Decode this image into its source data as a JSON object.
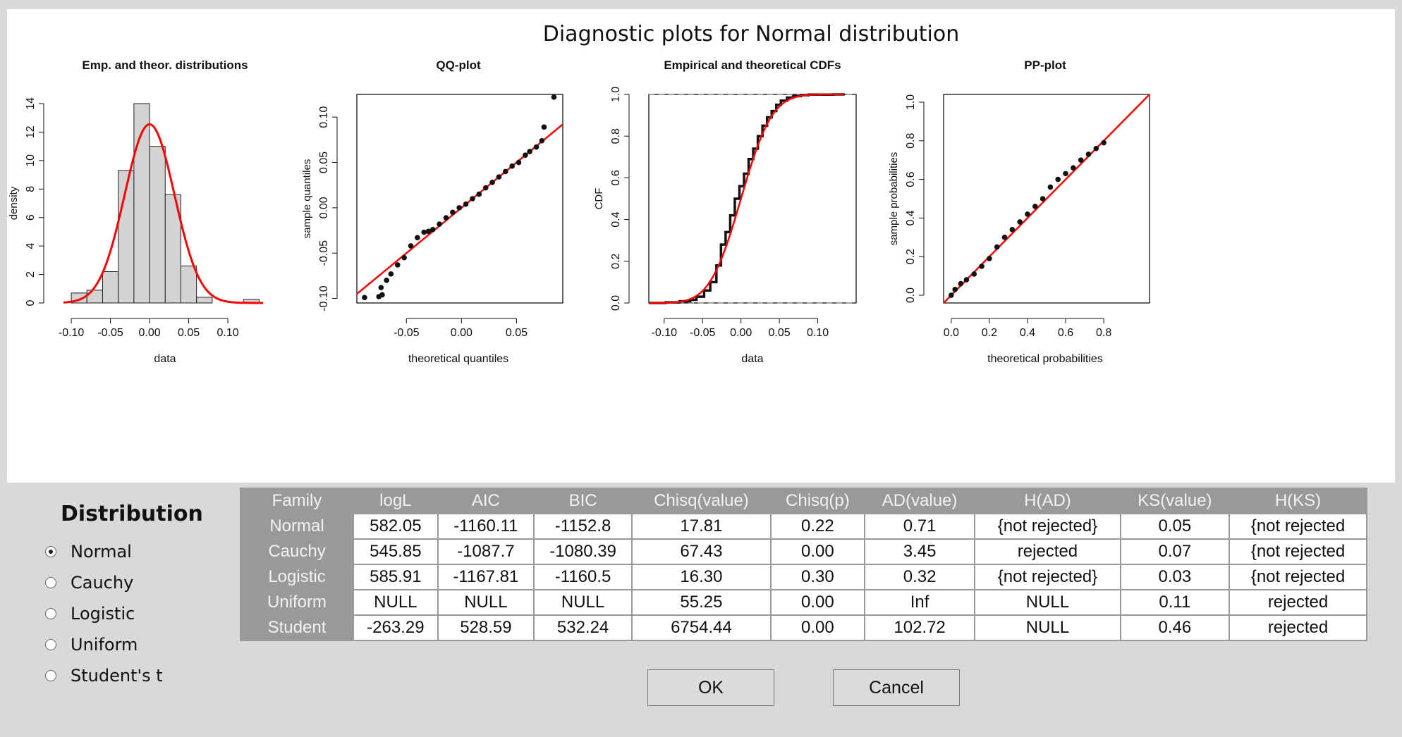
{
  "plot_panel": {
    "main_title": "Diagnostic plots for Normal distribution"
  },
  "chart_data": [
    {
      "type": "bar",
      "title": "Emp. and theor. distributions",
      "xlabel": "data",
      "ylabel": "density",
      "xlim": [
        -0.11,
        0.145
      ],
      "ylim": [
        0,
        14
      ],
      "x_ticks": [
        "-0.10",
        "-0.05",
        "0.00",
        "0.05",
        "0.10"
      ],
      "y_ticks": [
        "0",
        "2",
        "4",
        "6",
        "8",
        "10",
        "12",
        "14"
      ],
      "bin_edges": [
        -0.1,
        -0.08,
        -0.06,
        -0.04,
        -0.02,
        0.0,
        0.02,
        0.04,
        0.06,
        0.08,
        0.1,
        0.12,
        0.14
      ],
      "values": [
        0.7,
        0.9,
        2.2,
        9.3,
        14.0,
        11.0,
        7.6,
        2.6,
        0.4,
        0.0,
        0.0,
        0.25
      ],
      "overlay": {
        "name": "normal density",
        "color": "#ff0000",
        "mean": 0.0,
        "sd": 0.0318
      },
      "grid": false
    },
    {
      "type": "scatter",
      "title": "QQ-plot",
      "xlabel": "theoretical quantiles",
      "ylabel": "sample quantiles",
      "xlim": [
        -0.095,
        0.092
      ],
      "ylim": [
        -0.105,
        0.125
      ],
      "x_ticks": [
        "-0.05",
        "0.00",
        "0.05"
      ],
      "y_ticks": [
        "-0.10",
        "-0.05",
        "0.00",
        "0.05",
        "0.10"
      ],
      "points_x": [
        -0.088,
        -0.075,
        -0.073,
        -0.072,
        -0.068,
        -0.064,
        -0.058,
        -0.052,
        -0.046,
        -0.04,
        -0.034,
        -0.03,
        -0.026,
        -0.02,
        -0.014,
        -0.008,
        -0.002,
        0.004,
        0.01,
        0.016,
        0.022,
        0.028,
        0.034,
        0.04,
        0.046,
        0.052,
        0.058,
        0.062,
        0.068,
        0.073,
        0.075,
        0.084
      ],
      "points_y": [
        -0.099,
        -0.098,
        -0.088,
        -0.096,
        -0.08,
        -0.073,
        -0.063,
        -0.055,
        -0.042,
        -0.033,
        -0.027,
        -0.026,
        -0.024,
        -0.018,
        -0.011,
        -0.005,
        0.0,
        0.004,
        0.01,
        0.015,
        0.022,
        0.028,
        0.034,
        0.04,
        0.046,
        0.05,
        0.058,
        0.062,
        0.067,
        0.074,
        0.089,
        0.122
      ],
      "reference_line": {
        "slope": 1.0,
        "intercept": 0.0,
        "color": "#ff0000"
      },
      "grid": false
    },
    {
      "type": "line",
      "title": "Empirical and theoretical CDFs",
      "xlabel": "data",
      "ylabel": "CDF",
      "xlim": [
        -0.12,
        0.15
      ],
      "ylim": [
        0,
        1.0
      ],
      "x_ticks": [
        "-0.10",
        "-0.05",
        "0.00",
        "0.05",
        "0.10"
      ],
      "y_ticks": [
        "0.0",
        "0.2",
        "0.4",
        "0.6",
        "0.8",
        "1.0"
      ],
      "empirical_x": [
        -0.12,
        -0.098,
        -0.08,
        -0.066,
        -0.058,
        -0.048,
        -0.04,
        -0.032,
        -0.026,
        -0.02,
        -0.014,
        -0.008,
        -0.002,
        0.004,
        0.01,
        0.016,
        0.022,
        0.028,
        0.034,
        0.04,
        0.046,
        0.052,
        0.06,
        0.068,
        0.078,
        0.088,
        0.12,
        0.135
      ],
      "empirical_y": [
        0.0,
        0.003,
        0.008,
        0.015,
        0.03,
        0.06,
        0.1,
        0.18,
        0.28,
        0.34,
        0.42,
        0.5,
        0.56,
        0.62,
        0.69,
        0.74,
        0.8,
        0.85,
        0.89,
        0.92,
        0.95,
        0.97,
        0.985,
        0.992,
        0.996,
        0.999,
        1.0,
        1.0
      ],
      "theoretical": {
        "mean": 0.0,
        "sd": 0.0318,
        "color": "#ff0000"
      },
      "reference_lines_y": [
        0.0,
        1.0
      ],
      "grid": false
    },
    {
      "type": "scatter",
      "title": "PP-plot",
      "xlabel": "theoretical probabilities",
      "ylabel": "sample probabilities",
      "xlim": [
        -0.04,
        1.04
      ],
      "ylim": [
        -0.04,
        1.04
      ],
      "x_ticks": [
        "0.0",
        "0.2",
        "0.4",
        "0.6",
        "0.8"
      ],
      "y_ticks": [
        "0.0",
        "0.2",
        "0.4",
        "0.6",
        "0.8",
        "1.0"
      ],
      "points_x": [
        0.0,
        0.02,
        0.05,
        0.08,
        0.12,
        0.16,
        0.2,
        0.24,
        0.28,
        0.32,
        0.36,
        0.4,
        0.44,
        0.48,
        0.52,
        0.56,
        0.6,
        0.64,
        0.68,
        0.72,
        0.76,
        0.8
      ],
      "points_y": [
        0.0,
        0.03,
        0.06,
        0.08,
        0.11,
        0.15,
        0.19,
        0.25,
        0.3,
        0.34,
        0.38,
        0.42,
        0.46,
        0.5,
        0.56,
        0.6,
        0.63,
        0.66,
        0.7,
        0.73,
        0.76,
        0.79
      ],
      "reference_line": {
        "slope": 1.0,
        "intercept": 0.0,
        "color": "#ff0000"
      },
      "grid": false
    }
  ],
  "distribution_panel": {
    "title": "Distribution",
    "options": [
      {
        "label": "Normal",
        "checked": true
      },
      {
        "label": "Cauchy",
        "checked": false
      },
      {
        "label": "Logistic",
        "checked": false
      },
      {
        "label": "Uniform",
        "checked": false
      },
      {
        "label": "Student's t",
        "checked": false
      }
    ]
  },
  "results_table": {
    "headers": [
      "Family",
      "logL",
      "AIC",
      "BIC",
      "Chisq(value)",
      "Chisq(p)",
      "AD(value)",
      "H(AD)",
      "KS(value)",
      "H(KS)"
    ],
    "rows": [
      [
        "Normal",
        "582.05",
        "-1160.11",
        "-1152.8",
        "17.81",
        "0.22",
        "0.71",
        "{not rejected}",
        "0.05",
        "{not rejected"
      ],
      [
        "Cauchy",
        "545.85",
        "-1087.7",
        "-1080.39",
        "67.43",
        "0.00",
        "3.45",
        "rejected",
        "0.07",
        "{not rejected"
      ],
      [
        "Logistic",
        "585.91",
        "-1167.81",
        "-1160.5",
        "16.30",
        "0.30",
        "0.32",
        "{not rejected}",
        "0.03",
        "{not rejected"
      ],
      [
        "Uniform",
        "NULL",
        "NULL",
        "NULL",
        "55.25",
        "0.00",
        "Inf",
        "NULL",
        "0.11",
        "rejected"
      ],
      [
        "Student",
        "-263.29",
        "528.59",
        "532.24",
        "6754.44",
        "0.00",
        "102.72",
        "NULL",
        "0.46",
        "rejected"
      ]
    ]
  },
  "buttons": {
    "ok_label": "OK",
    "cancel_label": "Cancel"
  }
}
